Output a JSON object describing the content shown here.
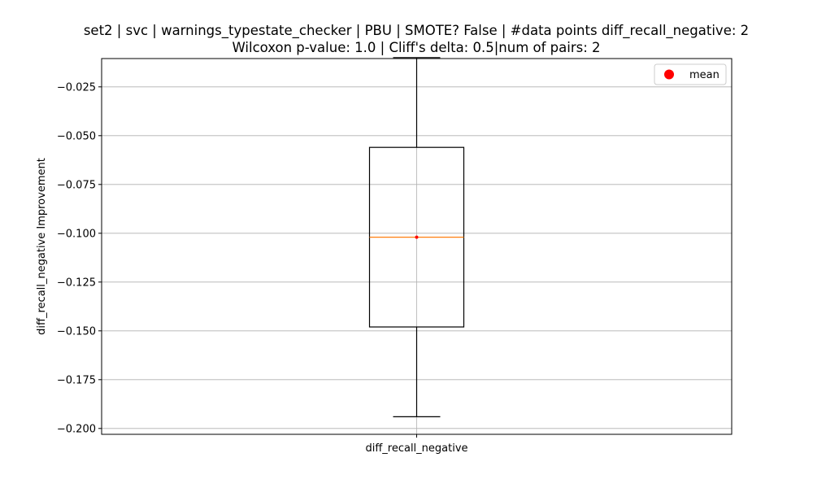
{
  "chart_data": {
    "type": "box",
    "title_line1": "set2 | svc | warnings_typestate_checker | PBU | SMOTE? False | #data points diff_recall_negative: 2",
    "title_line2": "Wilcoxon p-value: 1.0 | Cliff's delta: 0.5|num of pairs: 2",
    "xlabel": "",
    "ylabel": "diff_recall_negative Improvement",
    "categories": [
      "diff_recall_negative"
    ],
    "ylim": [
      -0.203,
      -0.0105
    ],
    "yticks": [
      -0.025,
      -0.05,
      -0.075,
      -0.1,
      -0.125,
      -0.15,
      -0.175,
      -0.2
    ],
    "ytick_labels": [
      "−0.025",
      "−0.050",
      "−0.075",
      "−0.100",
      "−0.125",
      "−0.150",
      "−0.175",
      "−0.200"
    ],
    "grid": true,
    "boxes": [
      {
        "name": "diff_recall_negative",
        "whisker_low": -0.194,
        "q1": -0.148,
        "median": -0.102,
        "q3": -0.056,
        "whisker_high": -0.01,
        "mean": -0.102
      }
    ],
    "legend": {
      "placement": "top-right",
      "entries": [
        {
          "label": "mean",
          "color": "#ff0000",
          "marker": "circle"
        }
      ]
    },
    "colors": {
      "box": "#000000",
      "median": "#ff7f0e",
      "mean": "#ff0000",
      "grid": "#b0b0b0"
    }
  }
}
